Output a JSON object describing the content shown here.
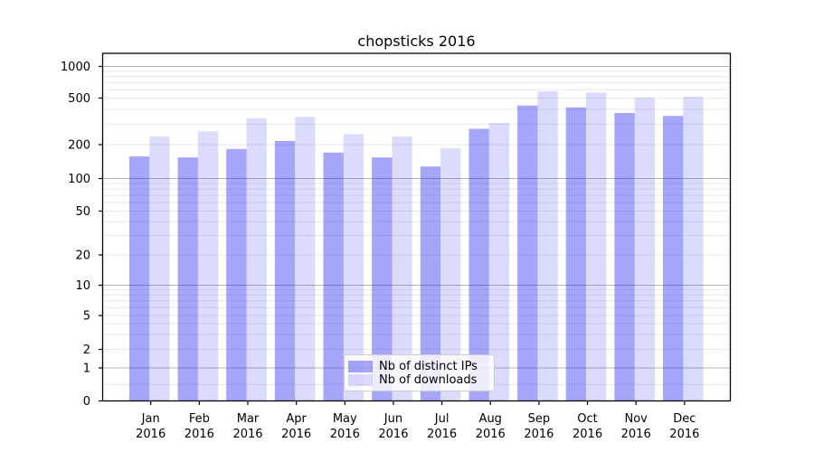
{
  "chart_data": {
    "type": "bar",
    "title": "chopsticks 2016",
    "categories": [
      "Jan 2016",
      "Feb 2016",
      "Mar 2016",
      "Apr 2016",
      "May 2016",
      "Jun 2016",
      "Jul 2016",
      "Aug 2016",
      "Sep 2016",
      "Oct 2016",
      "Nov 2016",
      "Dec 2016"
    ],
    "x_tick_labels": [
      {
        "month": "Jan",
        "year": "2016"
      },
      {
        "month": "Feb",
        "year": "2016"
      },
      {
        "month": "Mar",
        "year": "2016"
      },
      {
        "month": "Apr",
        "year": "2016"
      },
      {
        "month": "May",
        "year": "2016"
      },
      {
        "month": "Jun",
        "year": "2016"
      },
      {
        "month": "Jul",
        "year": "2016"
      },
      {
        "month": "Aug",
        "year": "2016"
      },
      {
        "month": "Sep",
        "year": "2016"
      },
      {
        "month": "Oct",
        "year": "2016"
      },
      {
        "month": "Nov",
        "year": "2016"
      },
      {
        "month": "Dec",
        "year": "2016"
      }
    ],
    "series": [
      {
        "name": "Nb of distinct IPs",
        "color": "rgba(30,30,240,0.40)",
        "values": [
          157,
          154,
          183,
          215,
          170,
          154,
          128,
          273,
          432,
          416,
          373,
          352
        ]
      },
      {
        "name": "Nb of downloads",
        "color": "rgba(30,30,240,0.16)",
        "values": [
          235,
          260,
          336,
          346,
          246,
          235,
          186,
          306,
          580,
          565,
          503,
          515
        ]
      }
    ],
    "y_axis": {
      "scale": "symlog",
      "ylim": [
        0,
        1000
      ],
      "tick_values": [
        0,
        1,
        2,
        5,
        10,
        20,
        50,
        100,
        200,
        500,
        1000
      ],
      "tick_labels": [
        "0",
        "1",
        "2",
        "5",
        "10",
        "20",
        "50",
        "100",
        "200",
        "500",
        "1000"
      ],
      "major_grid_values": [
        1,
        10,
        100,
        1000
      ],
      "minor_grid_values": [
        0.5,
        2,
        3,
        4,
        5,
        6,
        7,
        8,
        9,
        20,
        30,
        40,
        50,
        60,
        70,
        80,
        90,
        200,
        300,
        400,
        500,
        600,
        700,
        800,
        900
      ]
    },
    "grid": true,
    "legend": {
      "position": "lower-center"
    },
    "colors": {
      "major_grid": "#b3b3b3",
      "minor_grid": "#e9e9e9",
      "spine": "#000000",
      "text": "#000000"
    }
  }
}
